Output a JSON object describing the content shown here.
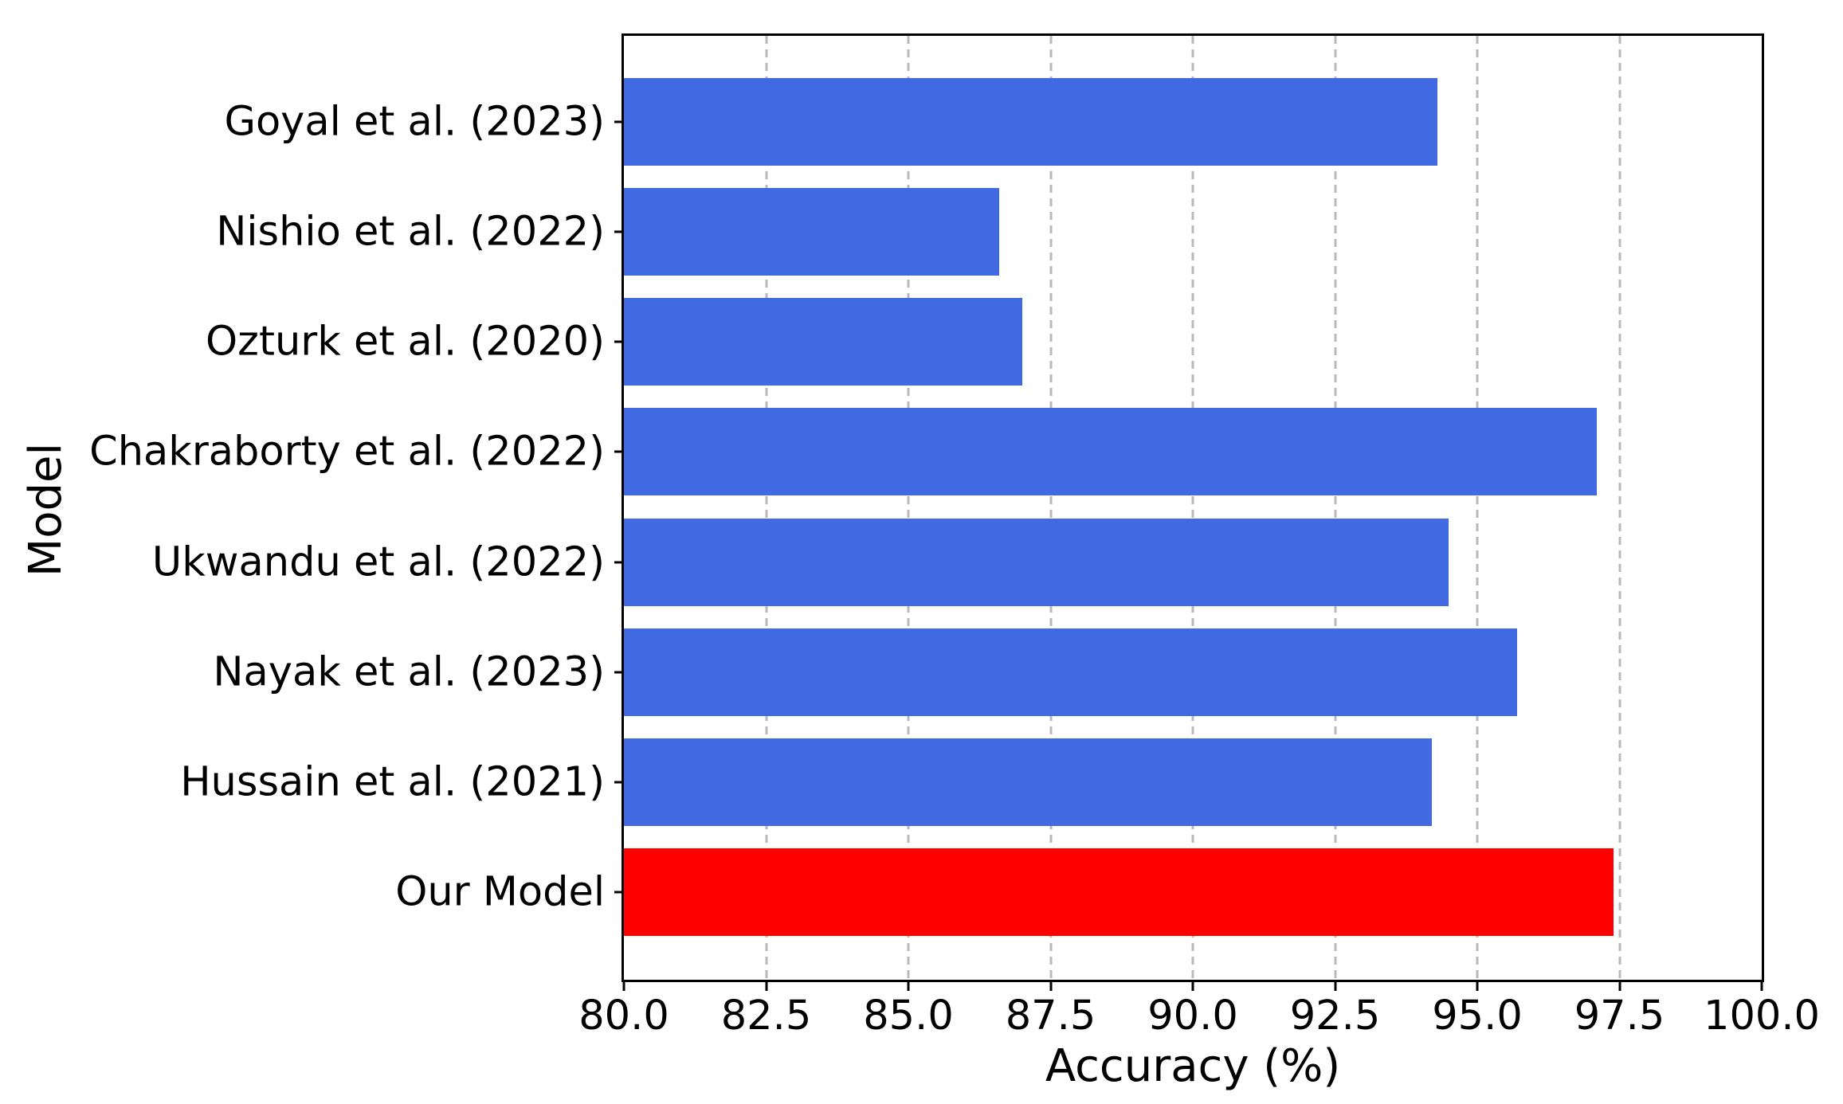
{
  "chart_data": {
    "type": "bar",
    "orientation": "horizontal",
    "title": "",
    "xlabel": "Accuracy (%)",
    "ylabel": "Model",
    "categories": [
      "Goyal et al. (2023)",
      "Nishio et al. (2022)",
      "Ozturk et al. (2020)",
      "Chakraborty et al. (2022)",
      "Ukwandu et al. (2022)",
      "Nayak et al. (2023)",
      "Hussain et al. (2021)",
      "Our Model"
    ],
    "values": [
      94.3,
      86.6,
      87.0,
      97.1,
      94.5,
      95.7,
      94.2,
      97.4
    ],
    "xlim": [
      80.0,
      100.0
    ],
    "x_ticks": [
      80.0,
      82.5,
      85.0,
      87.5,
      90.0,
      92.5,
      95.0,
      97.5,
      100.0
    ],
    "x_tick_labels": [
      "80.0",
      "82.5",
      "85.0",
      "87.5",
      "90.0",
      "92.5",
      "95.0",
      "97.5",
      "100.0"
    ],
    "grid": {
      "axis": "x",
      "style": "dashed",
      "color": "#b9b9b9"
    },
    "legend": null,
    "colors": {
      "default_bar": "#4169e1",
      "highlight_bar": "#ff0000",
      "highlight_category": "Our Model",
      "axis": "#000000",
      "text": "#000000",
      "background": "#ffffff"
    },
    "bar_colors": [
      "#4169e1",
      "#4169e1",
      "#4169e1",
      "#4169e1",
      "#4169e1",
      "#4169e1",
      "#4169e1",
      "#ff0000"
    ]
  }
}
